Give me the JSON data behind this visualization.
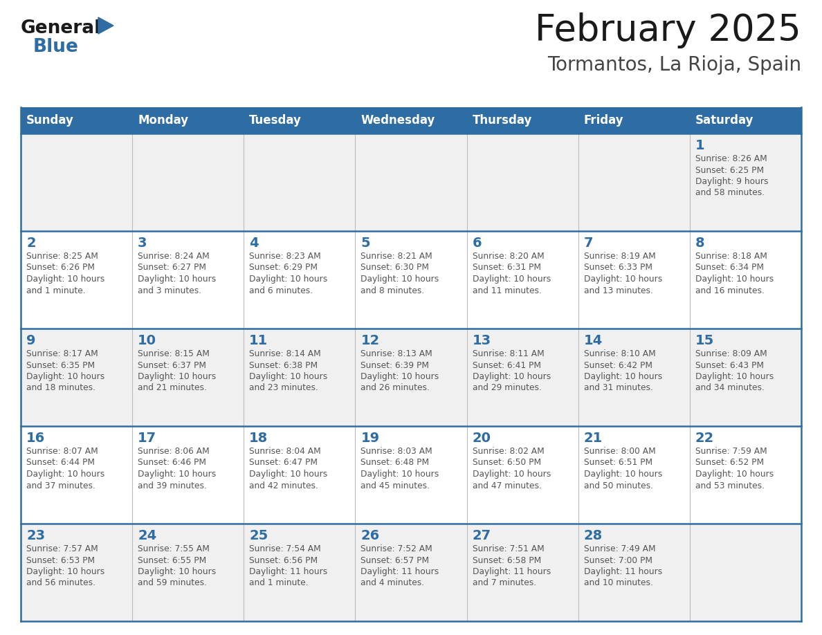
{
  "title": "February 2025",
  "subtitle": "Tormantos, La Rioja, Spain",
  "header_bg": "#2E6DA4",
  "header_text": "#FFFFFF",
  "header_days": [
    "Sunday",
    "Monday",
    "Tuesday",
    "Wednesday",
    "Thursday",
    "Friday",
    "Saturday"
  ],
  "cell_bg_odd": "#F0F0F0",
  "cell_bg_even": "#FFFFFF",
  "day_number_color": "#2E6DA4",
  "cell_text_color": "#555555",
  "title_color": "#1a1a1a",
  "subtitle_color": "#444444",
  "logo_general_color": "#1a1a1a",
  "logo_blue_color": "#2E6DA4",
  "weeks": [
    [
      {
        "day": null,
        "info": ""
      },
      {
        "day": null,
        "info": ""
      },
      {
        "day": null,
        "info": ""
      },
      {
        "day": null,
        "info": ""
      },
      {
        "day": null,
        "info": ""
      },
      {
        "day": null,
        "info": ""
      },
      {
        "day": 1,
        "info": "Sunrise: 8:26 AM\nSunset: 6:25 PM\nDaylight: 9 hours\nand 58 minutes."
      }
    ],
    [
      {
        "day": 2,
        "info": "Sunrise: 8:25 AM\nSunset: 6:26 PM\nDaylight: 10 hours\nand 1 minute."
      },
      {
        "day": 3,
        "info": "Sunrise: 8:24 AM\nSunset: 6:27 PM\nDaylight: 10 hours\nand 3 minutes."
      },
      {
        "day": 4,
        "info": "Sunrise: 8:23 AM\nSunset: 6:29 PM\nDaylight: 10 hours\nand 6 minutes."
      },
      {
        "day": 5,
        "info": "Sunrise: 8:21 AM\nSunset: 6:30 PM\nDaylight: 10 hours\nand 8 minutes."
      },
      {
        "day": 6,
        "info": "Sunrise: 8:20 AM\nSunset: 6:31 PM\nDaylight: 10 hours\nand 11 minutes."
      },
      {
        "day": 7,
        "info": "Sunrise: 8:19 AM\nSunset: 6:33 PM\nDaylight: 10 hours\nand 13 minutes."
      },
      {
        "day": 8,
        "info": "Sunrise: 8:18 AM\nSunset: 6:34 PM\nDaylight: 10 hours\nand 16 minutes."
      }
    ],
    [
      {
        "day": 9,
        "info": "Sunrise: 8:17 AM\nSunset: 6:35 PM\nDaylight: 10 hours\nand 18 minutes."
      },
      {
        "day": 10,
        "info": "Sunrise: 8:15 AM\nSunset: 6:37 PM\nDaylight: 10 hours\nand 21 minutes."
      },
      {
        "day": 11,
        "info": "Sunrise: 8:14 AM\nSunset: 6:38 PM\nDaylight: 10 hours\nand 23 minutes."
      },
      {
        "day": 12,
        "info": "Sunrise: 8:13 AM\nSunset: 6:39 PM\nDaylight: 10 hours\nand 26 minutes."
      },
      {
        "day": 13,
        "info": "Sunrise: 8:11 AM\nSunset: 6:41 PM\nDaylight: 10 hours\nand 29 minutes."
      },
      {
        "day": 14,
        "info": "Sunrise: 8:10 AM\nSunset: 6:42 PM\nDaylight: 10 hours\nand 31 minutes."
      },
      {
        "day": 15,
        "info": "Sunrise: 8:09 AM\nSunset: 6:43 PM\nDaylight: 10 hours\nand 34 minutes."
      }
    ],
    [
      {
        "day": 16,
        "info": "Sunrise: 8:07 AM\nSunset: 6:44 PM\nDaylight: 10 hours\nand 37 minutes."
      },
      {
        "day": 17,
        "info": "Sunrise: 8:06 AM\nSunset: 6:46 PM\nDaylight: 10 hours\nand 39 minutes."
      },
      {
        "day": 18,
        "info": "Sunrise: 8:04 AM\nSunset: 6:47 PM\nDaylight: 10 hours\nand 42 minutes."
      },
      {
        "day": 19,
        "info": "Sunrise: 8:03 AM\nSunset: 6:48 PM\nDaylight: 10 hours\nand 45 minutes."
      },
      {
        "day": 20,
        "info": "Sunrise: 8:02 AM\nSunset: 6:50 PM\nDaylight: 10 hours\nand 47 minutes."
      },
      {
        "day": 21,
        "info": "Sunrise: 8:00 AM\nSunset: 6:51 PM\nDaylight: 10 hours\nand 50 minutes."
      },
      {
        "day": 22,
        "info": "Sunrise: 7:59 AM\nSunset: 6:52 PM\nDaylight: 10 hours\nand 53 minutes."
      }
    ],
    [
      {
        "day": 23,
        "info": "Sunrise: 7:57 AM\nSunset: 6:53 PM\nDaylight: 10 hours\nand 56 minutes."
      },
      {
        "day": 24,
        "info": "Sunrise: 7:55 AM\nSunset: 6:55 PM\nDaylight: 10 hours\nand 59 minutes."
      },
      {
        "day": 25,
        "info": "Sunrise: 7:54 AM\nSunset: 6:56 PM\nDaylight: 11 hours\nand 1 minute."
      },
      {
        "day": 26,
        "info": "Sunrise: 7:52 AM\nSunset: 6:57 PM\nDaylight: 11 hours\nand 4 minutes."
      },
      {
        "day": 27,
        "info": "Sunrise: 7:51 AM\nSunset: 6:58 PM\nDaylight: 11 hours\nand 7 minutes."
      },
      {
        "day": 28,
        "info": "Sunrise: 7:49 AM\nSunset: 7:00 PM\nDaylight: 11 hours\nand 10 minutes."
      },
      {
        "day": null,
        "info": ""
      }
    ]
  ]
}
